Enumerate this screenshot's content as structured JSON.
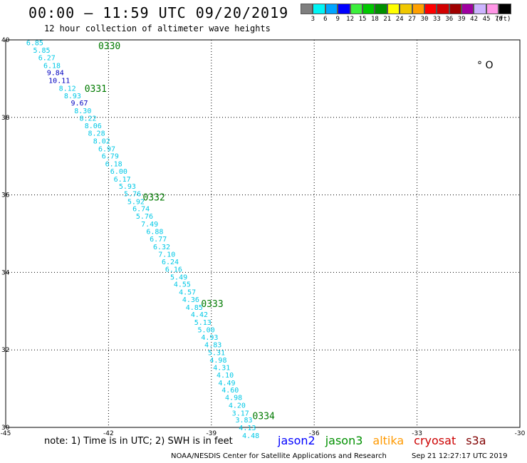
{
  "header": {
    "title": "00:00 – 11:59 UTC 09/20/2019",
    "subtitle": "12 hour collection of altimeter wave heights"
  },
  "legend": {
    "colors": [
      "#7f7f7f",
      "#00f5f5",
      "#00a5ff",
      "#0000ff",
      "#3cf03c",
      "#00c800",
      "#009000",
      "#ffff00",
      "#f0c800",
      "#ffa000",
      "#ff0000",
      "#d20000",
      "#a00000",
      "#a000a0",
      "#ccb4ff",
      "#ff96e6",
      "#000000"
    ],
    "labels": [
      "3",
      "6",
      "9",
      "12",
      "15",
      "18",
      "21",
      "24",
      "27",
      "30",
      "33",
      "36",
      "39",
      "42",
      "45",
      "70"
    ],
    "unit": "(ft)"
  },
  "axes": {
    "x_ticks": [
      "-45",
      "-42",
      "-39",
      "-36",
      "-33",
      "-30"
    ],
    "y_ticks": [
      "40",
      "38",
      "36",
      "34",
      "32",
      "30"
    ]
  },
  "map": {
    "extent": {
      "lon": [
        -45,
        -30
      ],
      "lat": [
        30,
        40
      ]
    },
    "gridlines": true,
    "land_label": "° O",
    "track_time_labels": [
      {
        "text": "0330",
        "lon": -42.3,
        "lat": 39.85
      },
      {
        "text": "0331",
        "lon": -42.7,
        "lat": 38.75
      },
      {
        "text": "0332",
        "lon": -41.0,
        "lat": 35.95
      },
      {
        "text": "0333",
        "lon": -39.3,
        "lat": 33.2
      },
      {
        "text": "0334",
        "lon": -37.8,
        "lat": 30.3
      }
    ],
    "wave_points": [
      {
        "value": "6.85",
        "lon": -44.4,
        "lat": 39.94,
        "color": "#00c8e6"
      },
      {
        "value": "5.85",
        "lon": -44.2,
        "lat": 39.74,
        "color": "#00c8e6"
      },
      {
        "value": "6.27",
        "lon": -44.05,
        "lat": 39.55,
        "color": "#00c8e6"
      },
      {
        "value": "6.18",
        "lon": -43.9,
        "lat": 39.35,
        "color": "#00c8e6"
      },
      {
        "value": "9.84",
        "lon": -43.8,
        "lat": 39.16,
        "color": "#0000c0"
      },
      {
        "value": "10.11",
        "lon": -43.75,
        "lat": 38.96,
        "color": "#0000c0"
      },
      {
        "value": "8.12",
        "lon": -43.45,
        "lat": 38.76,
        "color": "#00c8e6"
      },
      {
        "value": "8.93",
        "lon": -43.3,
        "lat": 38.57,
        "color": "#00c8e6"
      },
      {
        "value": "9.67",
        "lon": -43.1,
        "lat": 38.38,
        "color": "#0000c0"
      },
      {
        "value": "8.30",
        "lon": -43.0,
        "lat": 38.18,
        "color": "#00c8e6"
      },
      {
        "value": "8.22",
        "lon": -42.85,
        "lat": 37.99,
        "color": "#00c8e6"
      },
      {
        "value": "8.06",
        "lon": -42.7,
        "lat": 37.79,
        "color": "#00c8e6"
      },
      {
        "value": "8.28",
        "lon": -42.6,
        "lat": 37.6,
        "color": "#00c8e6"
      },
      {
        "value": "8.02",
        "lon": -42.45,
        "lat": 37.4,
        "color": "#00c8e6"
      },
      {
        "value": "6.97",
        "lon": -42.3,
        "lat": 37.2,
        "color": "#00c8e6"
      },
      {
        "value": "6.79",
        "lon": -42.2,
        "lat": 37.01,
        "color": "#00c8e6"
      },
      {
        "value": "6.18",
        "lon": -42.1,
        "lat": 36.81,
        "color": "#00c8e6"
      },
      {
        "value": "6.00",
        "lon": -41.95,
        "lat": 36.62,
        "color": "#00c8e6"
      },
      {
        "value": "6.17",
        "lon": -41.85,
        "lat": 36.42,
        "color": "#00c8e6"
      },
      {
        "value": "5.93",
        "lon": -41.7,
        "lat": 36.23,
        "color": "#00c8e6"
      },
      {
        "value": "5.76",
        "lon": -41.55,
        "lat": 36.04,
        "color": "#00c8e6"
      },
      {
        "value": "5.92",
        "lon": -41.45,
        "lat": 35.84,
        "color": "#00c8e6"
      },
      {
        "value": "6.74",
        "lon": -41.3,
        "lat": 35.65,
        "color": "#00c8e6"
      },
      {
        "value": "5.76",
        "lon": -41.2,
        "lat": 35.46,
        "color": "#00c8e6"
      },
      {
        "value": "7.49",
        "lon": -41.05,
        "lat": 35.26,
        "color": "#00c8e6"
      },
      {
        "value": "6.88",
        "lon": -40.9,
        "lat": 35.06,
        "color": "#00c8e6"
      },
      {
        "value": "6.77",
        "lon": -40.8,
        "lat": 34.87,
        "color": "#00c8e6"
      },
      {
        "value": "6.32",
        "lon": -40.7,
        "lat": 34.67,
        "color": "#00c8e6"
      },
      {
        "value": "7.10",
        "lon": -40.55,
        "lat": 34.48,
        "color": "#00c8e6"
      },
      {
        "value": "6.24",
        "lon": -40.45,
        "lat": 34.28,
        "color": "#00c8e6"
      },
      {
        "value": "6.16",
        "lon": -40.35,
        "lat": 34.09,
        "color": "#00c8e6"
      },
      {
        "value": "5.49",
        "lon": -40.2,
        "lat": 33.89,
        "color": "#00c8e6"
      },
      {
        "value": "4.55",
        "lon": -40.1,
        "lat": 33.7,
        "color": "#00c8e6"
      },
      {
        "value": "4.57",
        "lon": -39.95,
        "lat": 33.5,
        "color": "#00c8e6"
      },
      {
        "value": "4.36",
        "lon": -39.85,
        "lat": 33.31,
        "color": "#00c8e6"
      },
      {
        "value": "4.85",
        "lon": -39.75,
        "lat": 33.11,
        "color": "#00c8e6"
      },
      {
        "value": "4.42",
        "lon": -39.6,
        "lat": 32.92,
        "color": "#00c8e6"
      },
      {
        "value": "5.13",
        "lon": -39.5,
        "lat": 32.72,
        "color": "#00c8e6"
      },
      {
        "value": "5.00",
        "lon": -39.4,
        "lat": 32.53,
        "color": "#00c8e6"
      },
      {
        "value": "4.93",
        "lon": -39.3,
        "lat": 32.33,
        "color": "#00c8e6"
      },
      {
        "value": "4.83",
        "lon": -39.2,
        "lat": 32.14,
        "color": "#00c8e6"
      },
      {
        "value": "5.31",
        "lon": -39.1,
        "lat": 31.94,
        "color": "#00c8e6"
      },
      {
        "value": "4.98",
        "lon": -39.05,
        "lat": 31.75,
        "color": "#00c8e6"
      },
      {
        "value": "4.31",
        "lon": -38.95,
        "lat": 31.55,
        "color": "#00c8e6"
      },
      {
        "value": "4.10",
        "lon": -38.85,
        "lat": 31.36,
        "color": "#00c8e6"
      },
      {
        "value": "4.49",
        "lon": -38.8,
        "lat": 31.16,
        "color": "#00c8e6"
      },
      {
        "value": "4.60",
        "lon": -38.7,
        "lat": 30.97,
        "color": "#00c8e6"
      },
      {
        "value": "4.98",
        "lon": -38.6,
        "lat": 30.78,
        "color": "#00c8e6"
      },
      {
        "value": "4.20",
        "lon": -38.5,
        "lat": 30.58,
        "color": "#00c8e6"
      },
      {
        "value": "3.17",
        "lon": -38.4,
        "lat": 30.38,
        "color": "#00c8e6"
      },
      {
        "value": "3.83",
        "lon": -38.3,
        "lat": 30.2,
        "color": "#00c8e6"
      },
      {
        "value": "4.13",
        "lon": -38.2,
        "lat": 30.0,
        "color": "#00c8e6"
      },
      {
        "value": "4.48",
        "lon": -38.1,
        "lat": 29.8,
        "color": "#00c8e6"
      }
    ]
  },
  "footer": {
    "note": "note:  1) Time is in UTC;  2) SWH is in feet",
    "satellites": [
      {
        "name": "jason2",
        "color": "#0000ff"
      },
      {
        "name": "jason3",
        "color": "#009000"
      },
      {
        "name": "altika",
        "color": "#ff9900"
      },
      {
        "name": "cryosat",
        "color": "#cc0000"
      },
      {
        "name": "s3a",
        "color": "#800000"
      }
    ],
    "credit": "NOAA/NESDIS Center for Satellite Applications and Research",
    "generated": "Sep 21 12:27:17 UTC 2019"
  }
}
